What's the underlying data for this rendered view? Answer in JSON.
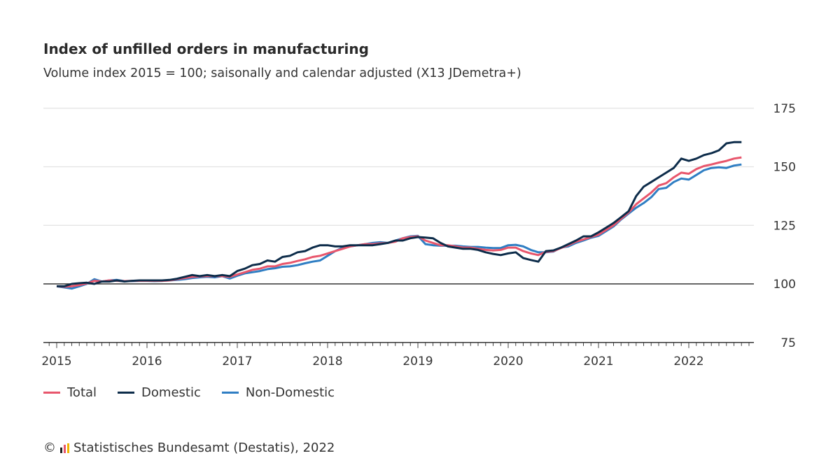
{
  "title": "Index of unfilled orders in manufacturing",
  "subtitle": "Volume index 2015 = 100; saisonally and calendar adjusted (X13 JDemetra+)",
  "footer": {
    "copyright": "©",
    "text": "Statistisches Bundesamt (Destatis), 2022"
  },
  "chart_data": {
    "type": "line",
    "title": "Index of unfilled orders in manufacturing",
    "subtitle": "Volume index 2015 = 100; saisonally and calendar adjusted (X13 JDemetra+)",
    "x_start": "2015-01",
    "x_frequency": "monthly",
    "x_end": "2022-08",
    "x_tick_labels": [
      "2015",
      "2016",
      "2017",
      "2018",
      "2019",
      "2020",
      "2021",
      "2022"
    ],
    "y_tick_labels": [
      "75",
      "100",
      "125",
      "150",
      "175"
    ],
    "ylim": [
      75,
      175
    ],
    "y_ticks": [
      75,
      100,
      125,
      150,
      175
    ],
    "baseline": 100,
    "grid": true,
    "legend_position": "bottom-left",
    "series": [
      {
        "name": "Total",
        "color": "#e8566c",
        "values": [
          99,
          98.8,
          99,
          99.5,
          100.2,
          101.3,
          101,
          101.5,
          101.3,
          101.2,
          101.3,
          101.3,
          101.3,
          101.3,
          101.3,
          101.5,
          102,
          102.5,
          103,
          103.2,
          103.3,
          103.3,
          103.3,
          103,
          104,
          105,
          106,
          106.5,
          107.5,
          107.5,
          108.5,
          109,
          109.8,
          110.5,
          111.5,
          112,
          113,
          114,
          115,
          116,
          116.5,
          117,
          117,
          117.3,
          117.5,
          118,
          119.5,
          120,
          120.3,
          118.5,
          117.5,
          116.5,
          116.5,
          116,
          115.5,
          115.5,
          115,
          114.5,
          114.3,
          114.5,
          115.5,
          115.5,
          114,
          113,
          112.3,
          113.7,
          114,
          115.3,
          116.5,
          118,
          119,
          120,
          121,
          123,
          125,
          127.8,
          130.5,
          134,
          136.5,
          139,
          142,
          143,
          145.5,
          147.5,
          147,
          149,
          150.3,
          151,
          151.8,
          152.5,
          153.5,
          154
        ]
      },
      {
        "name": "Domestic",
        "color": "#0d2c4a",
        "values": [
          99,
          99,
          100,
          100.3,
          100.5,
          100,
          101,
          101,
          101.5,
          101,
          101.3,
          101.5,
          101.5,
          101.5,
          101.5,
          101.7,
          102.2,
          103,
          103.8,
          103.3,
          103.8,
          103.3,
          103.8,
          103.3,
          105.5,
          106.5,
          108,
          108.5,
          110,
          109.5,
          111.5,
          112,
          113.5,
          114,
          115.5,
          116.5,
          116.5,
          116,
          116,
          116.5,
          116.5,
          116.5,
          116.5,
          117,
          117.5,
          118.5,
          118.5,
          119.5,
          120,
          119.8,
          119.5,
          117.5,
          116,
          115.5,
          115,
          115,
          114.5,
          113.5,
          112.8,
          112.3,
          113,
          113.5,
          111,
          110.2,
          109.5,
          114,
          114.3,
          115.5,
          117,
          118.5,
          120.3,
          120.3,
          122,
          124,
          126,
          128.5,
          131,
          137.5,
          141.5,
          143.5,
          145.5,
          147.5,
          149.5,
          153.5,
          152.5,
          153.5,
          155,
          155.8,
          157,
          160,
          160.5,
          160.5
        ]
      },
      {
        "name": "Non-Domestic",
        "color": "#2f7ec3",
        "values": [
          99,
          98.5,
          98,
          99,
          100,
          102,
          101,
          101.5,
          101.7,
          101.2,
          101.2,
          101.3,
          101.3,
          101.2,
          101.3,
          101.5,
          101.7,
          102,
          102.5,
          102.8,
          103,
          102.8,
          103.3,
          102.3,
          103.5,
          104.5,
          105,
          105.5,
          106.3,
          106.7,
          107.3,
          107.5,
          108,
          108.8,
          109.5,
          110,
          112,
          114,
          115.5,
          116,
          116.5,
          117,
          117.5,
          117.8,
          117.5,
          118.5,
          119.5,
          120.3,
          120.5,
          117,
          116.5,
          116.3,
          116.3,
          116.3,
          116,
          115.8,
          115.8,
          115.5,
          115.3,
          115.3,
          116.5,
          116.7,
          116,
          114.5,
          113.5,
          113.5,
          113.8,
          115.5,
          116,
          117.5,
          118.5,
          119.7,
          120.5,
          122.5,
          124.5,
          127.5,
          130,
          132.5,
          134.5,
          137,
          140.5,
          141,
          143.5,
          145,
          144.5,
          146.5,
          148.5,
          149.5,
          149.8,
          149.5,
          150.5,
          151
        ]
      }
    ]
  }
}
